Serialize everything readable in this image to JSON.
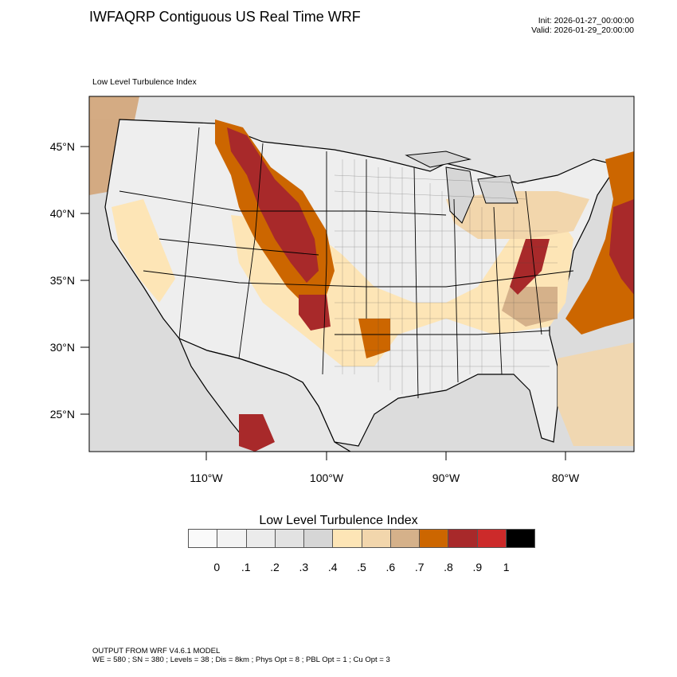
{
  "header": {
    "title": "IWFAQRP Contiguous US Real Time WRF",
    "init": "Init: 2026-01-27_00:00:00",
    "valid": "Valid: 2026-01-29_20:00:00"
  },
  "panel": {
    "label": "Low Level Turbulence Index"
  },
  "axes": {
    "lon_ticks": [
      "110°W",
      "100°W",
      "90°W",
      "80°W"
    ],
    "lat_ticks": [
      "45°N",
      "40°N",
      "35°N",
      "30°N",
      "25°N"
    ]
  },
  "legend": {
    "title": "Low Level Turbulence Index",
    "labels": [
      "0",
      ".1",
      ".2",
      ".3",
      ".4",
      ".5",
      ".6",
      ".7",
      ".8",
      ".9",
      "1"
    ],
    "colors": [
      "#fafafa",
      "#f3f3f3",
      "#ebebeb",
      "#e2e2e2",
      "#d6d6d6",
      "#fde5b6",
      "#f2d6ac",
      "#d5b18a",
      "#cc6600",
      "#a8292a",
      "#cc2a2a",
      "#000000"
    ]
  },
  "footer": {
    "line1": "OUTPUT FROM WRF V4.6.1 MODEL",
    "line2": "WE = 580 ; SN = 380 ; Levels = 38 ; Dis = 8km ; Phys Opt = 8 ; PBL Opt = 1 ; Cu Opt = 3"
  }
}
